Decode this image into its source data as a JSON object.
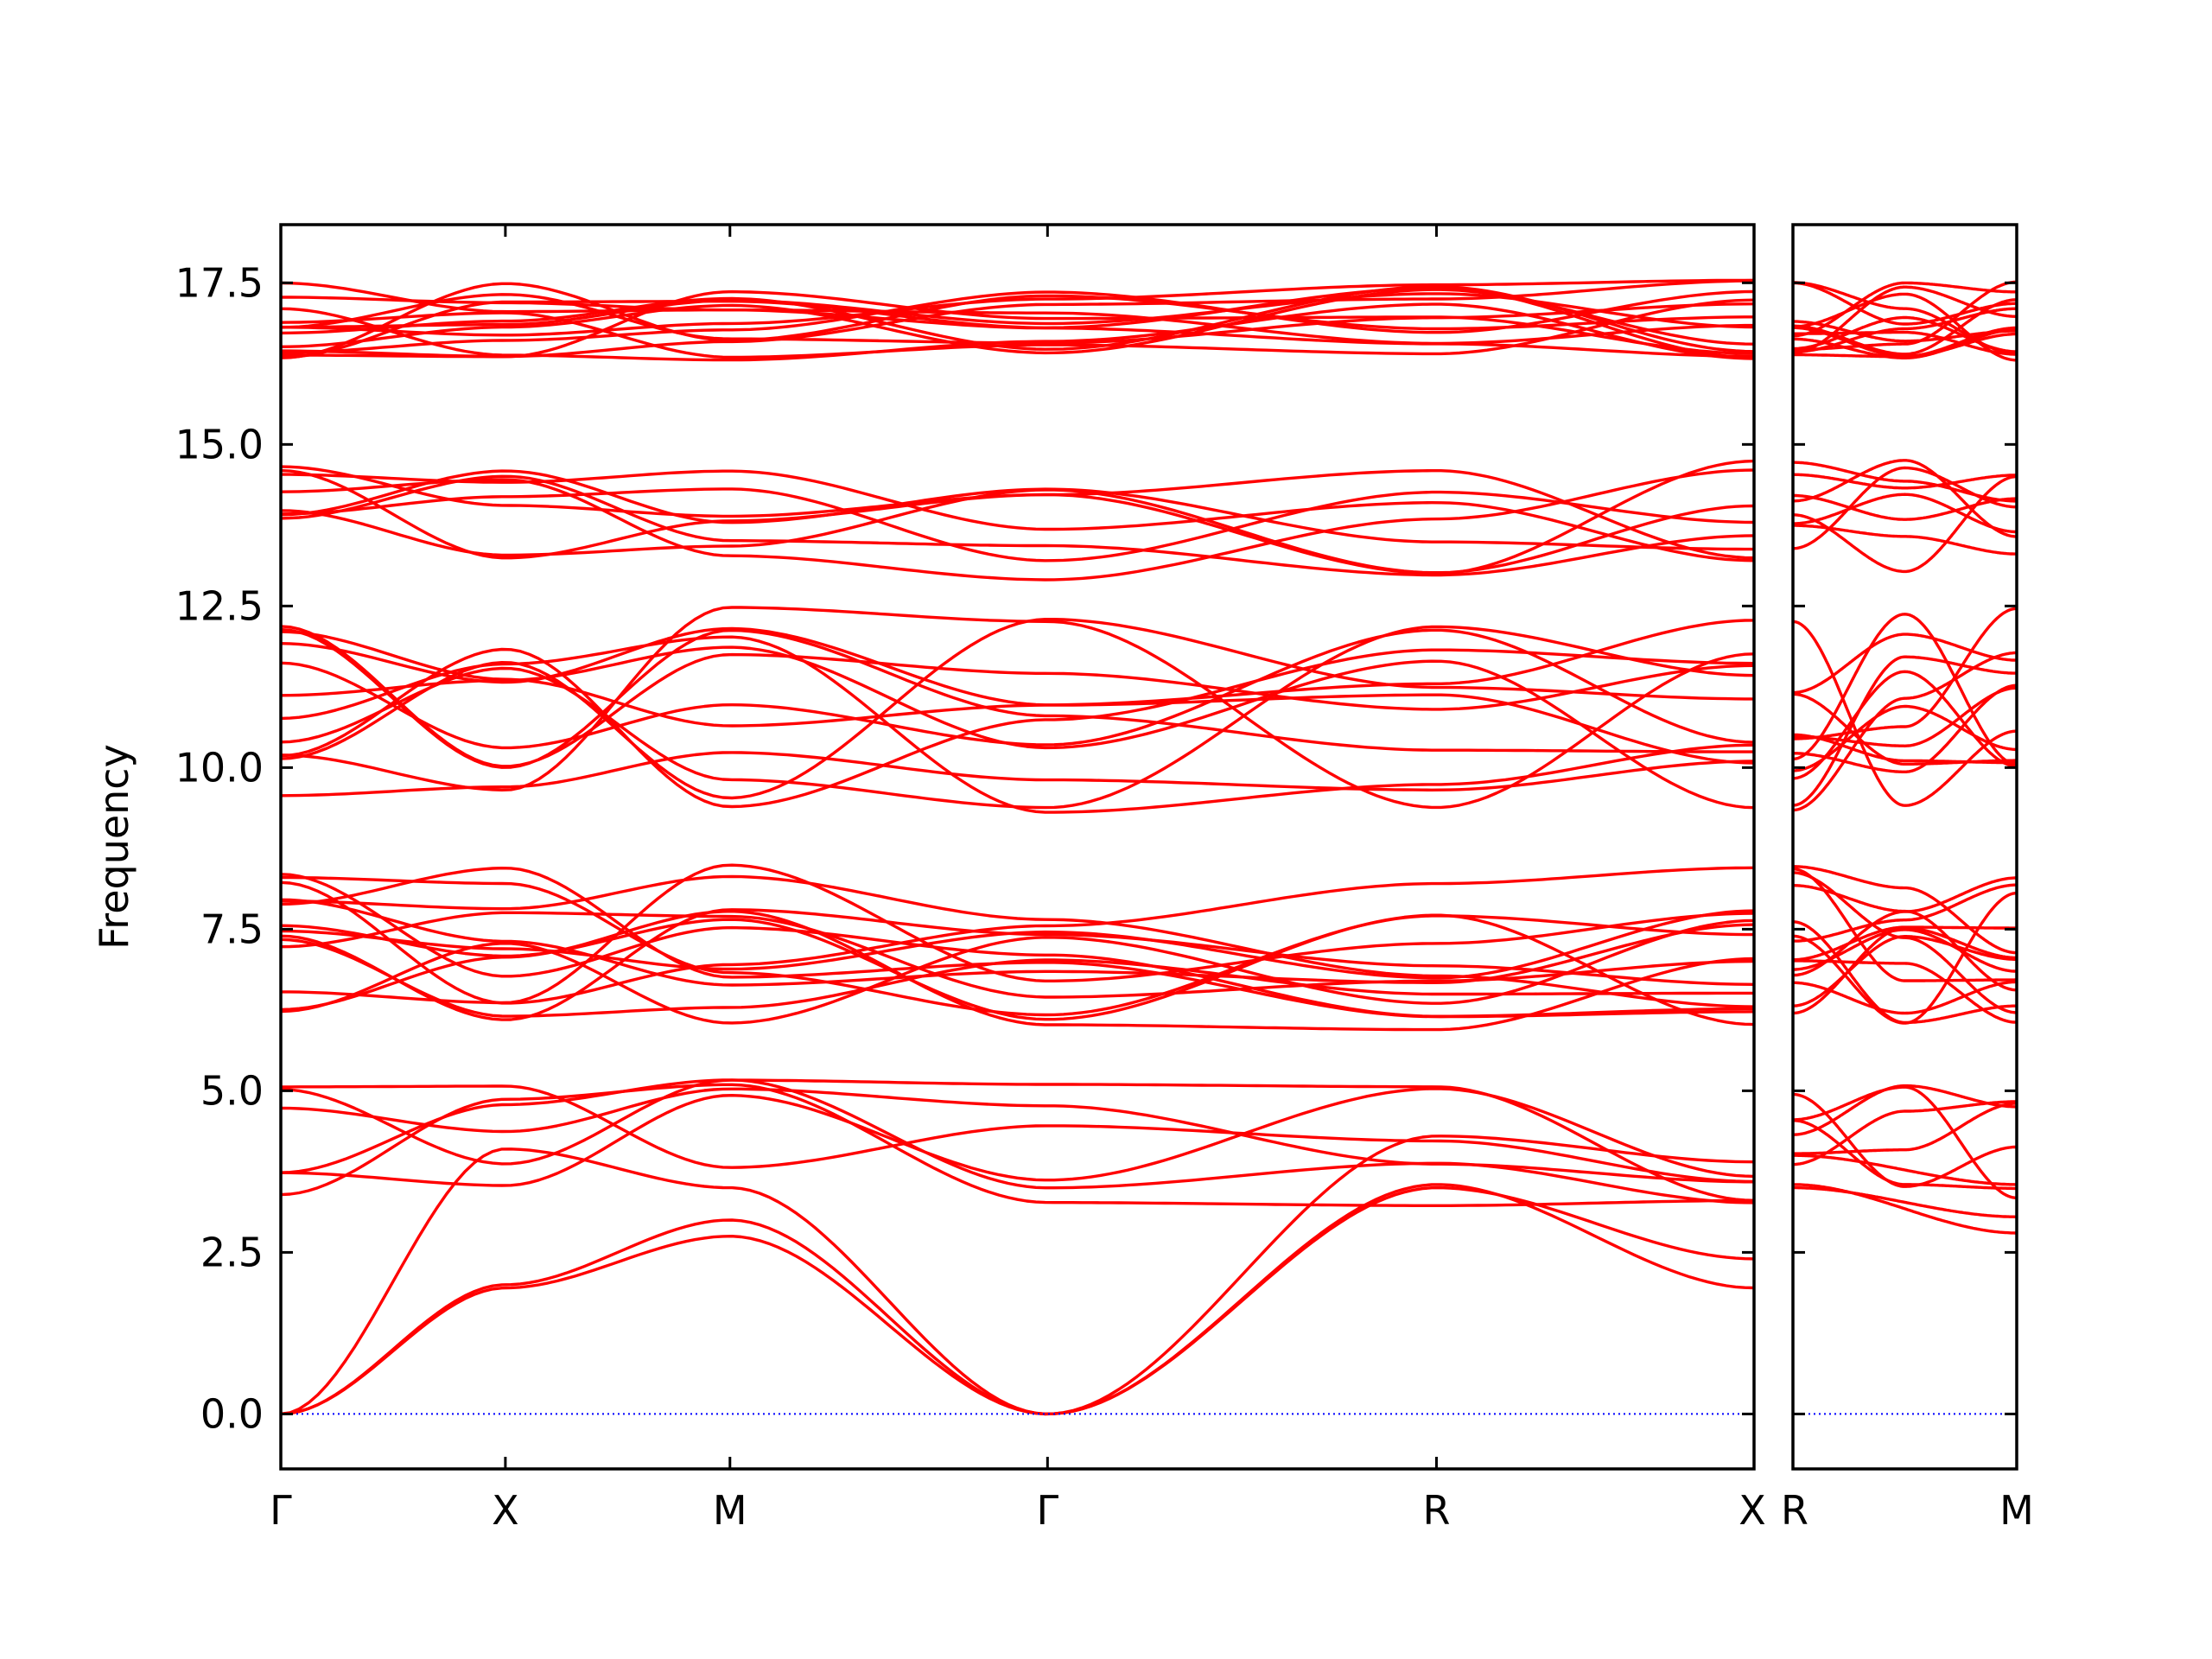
{
  "chart_data": {
    "type": "line",
    "ylabel": "Frequency",
    "xlabel": "",
    "title": "",
    "ylim": [
      -0.85,
      18.4
    ],
    "yticks": [
      "0.0",
      "2.5",
      "5.0",
      "7.5",
      "10.0",
      "12.5",
      "15.0",
      "17.5"
    ],
    "ytick_values": [
      0,
      2.5,
      5.0,
      7.5,
      10.0,
      12.5,
      15.0,
      17.5
    ],
    "grid": false,
    "line_color": "#ff0000",
    "zero_line_color": "#0000ff",
    "segments": [
      {
        "name": "",
        "high_symmetry_labels": [
          "Γ",
          "X",
          "M",
          "Γ",
          "R",
          "X"
        ],
        "high_symmetry_positions": [
          0,
          0.5,
          1.0,
          1.7071,
          2.5731,
          3.2802
        ]
      },
      {
        "name": "",
        "high_symmetry_labels": [
          "R",
          "M"
        ],
        "high_symmetry_positions": [
          0,
          0.7071
        ]
      }
    ],
    "band_groups": {
      "flat_high_band_range": [
        16.3,
        17.55
      ],
      "upper_band_range": [
        13.8,
        14.8
      ],
      "acoustic_max_at_X": 4.1,
      "lowest_optical_at_Gamma": 3.25,
      "band_gap": [
        14.8,
        16.3
      ]
    }
  }
}
